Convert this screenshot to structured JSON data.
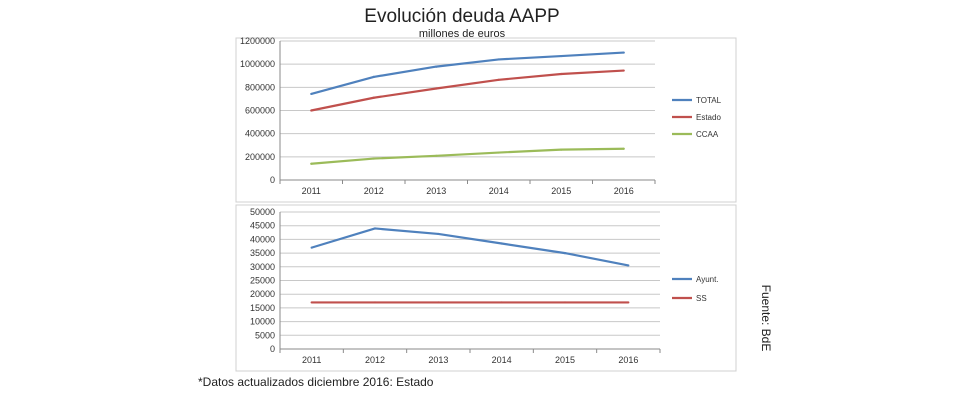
{
  "title": "Evolución deuda AAPP",
  "subtitle": "millones de euros",
  "footnote": "*Datos actualizados diciembre 2016: Estado",
  "source": "Fuente: BdE",
  "chart_data": [
    {
      "type": "line",
      "categories": [
        "2011",
        "2012",
        "2013",
        "2014",
        "2015",
        "2016"
      ],
      "ylim": [
        0,
        1200000
      ],
      "yticks": [
        0,
        200000,
        400000,
        600000,
        800000,
        1000000,
        1200000
      ],
      "ytick_labels": [
        "0",
        "200000",
        "400000",
        "600000",
        "800000",
        "1000000",
        "1200000"
      ],
      "grid": true,
      "legend": "right",
      "series": [
        {
          "name": "TOTAL",
          "color": "#4f81bd",
          "values": [
            743000,
            890000,
            979000,
            1041000,
            1070000,
            1100000
          ]
        },
        {
          "name": "Estado",
          "color": "#c0504d",
          "values": [
            600000,
            710000,
            790000,
            865000,
            915000,
            945000
          ]
        },
        {
          "name": "CCAA",
          "color": "#9bbb59",
          "values": [
            140000,
            185000,
            209000,
            237000,
            262000,
            270000
          ]
        }
      ]
    },
    {
      "type": "line",
      "categories": [
        "2011",
        "2012",
        "2013",
        "2014",
        "2015",
        "2016"
      ],
      "ylim": [
        0,
        50000
      ],
      "yticks": [
        0,
        5000,
        10000,
        15000,
        20000,
        25000,
        30000,
        35000,
        40000,
        45000,
        50000
      ],
      "ytick_labels": [
        "0",
        "5000",
        "10000",
        "15000",
        "20000",
        "25000",
        "30000",
        "35000",
        "40000",
        "45000",
        "50000"
      ],
      "grid": true,
      "legend": "right",
      "series": [
        {
          "name": "Ayunt.",
          "color": "#4f81bd",
          "values": [
            37000,
            44000,
            42000,
            38500,
            35000,
            30500
          ]
        },
        {
          "name": "SS",
          "color": "#c0504d",
          "values": [
            17000,
            17000,
            17000,
            17000,
            17000,
            17000
          ]
        }
      ]
    }
  ]
}
